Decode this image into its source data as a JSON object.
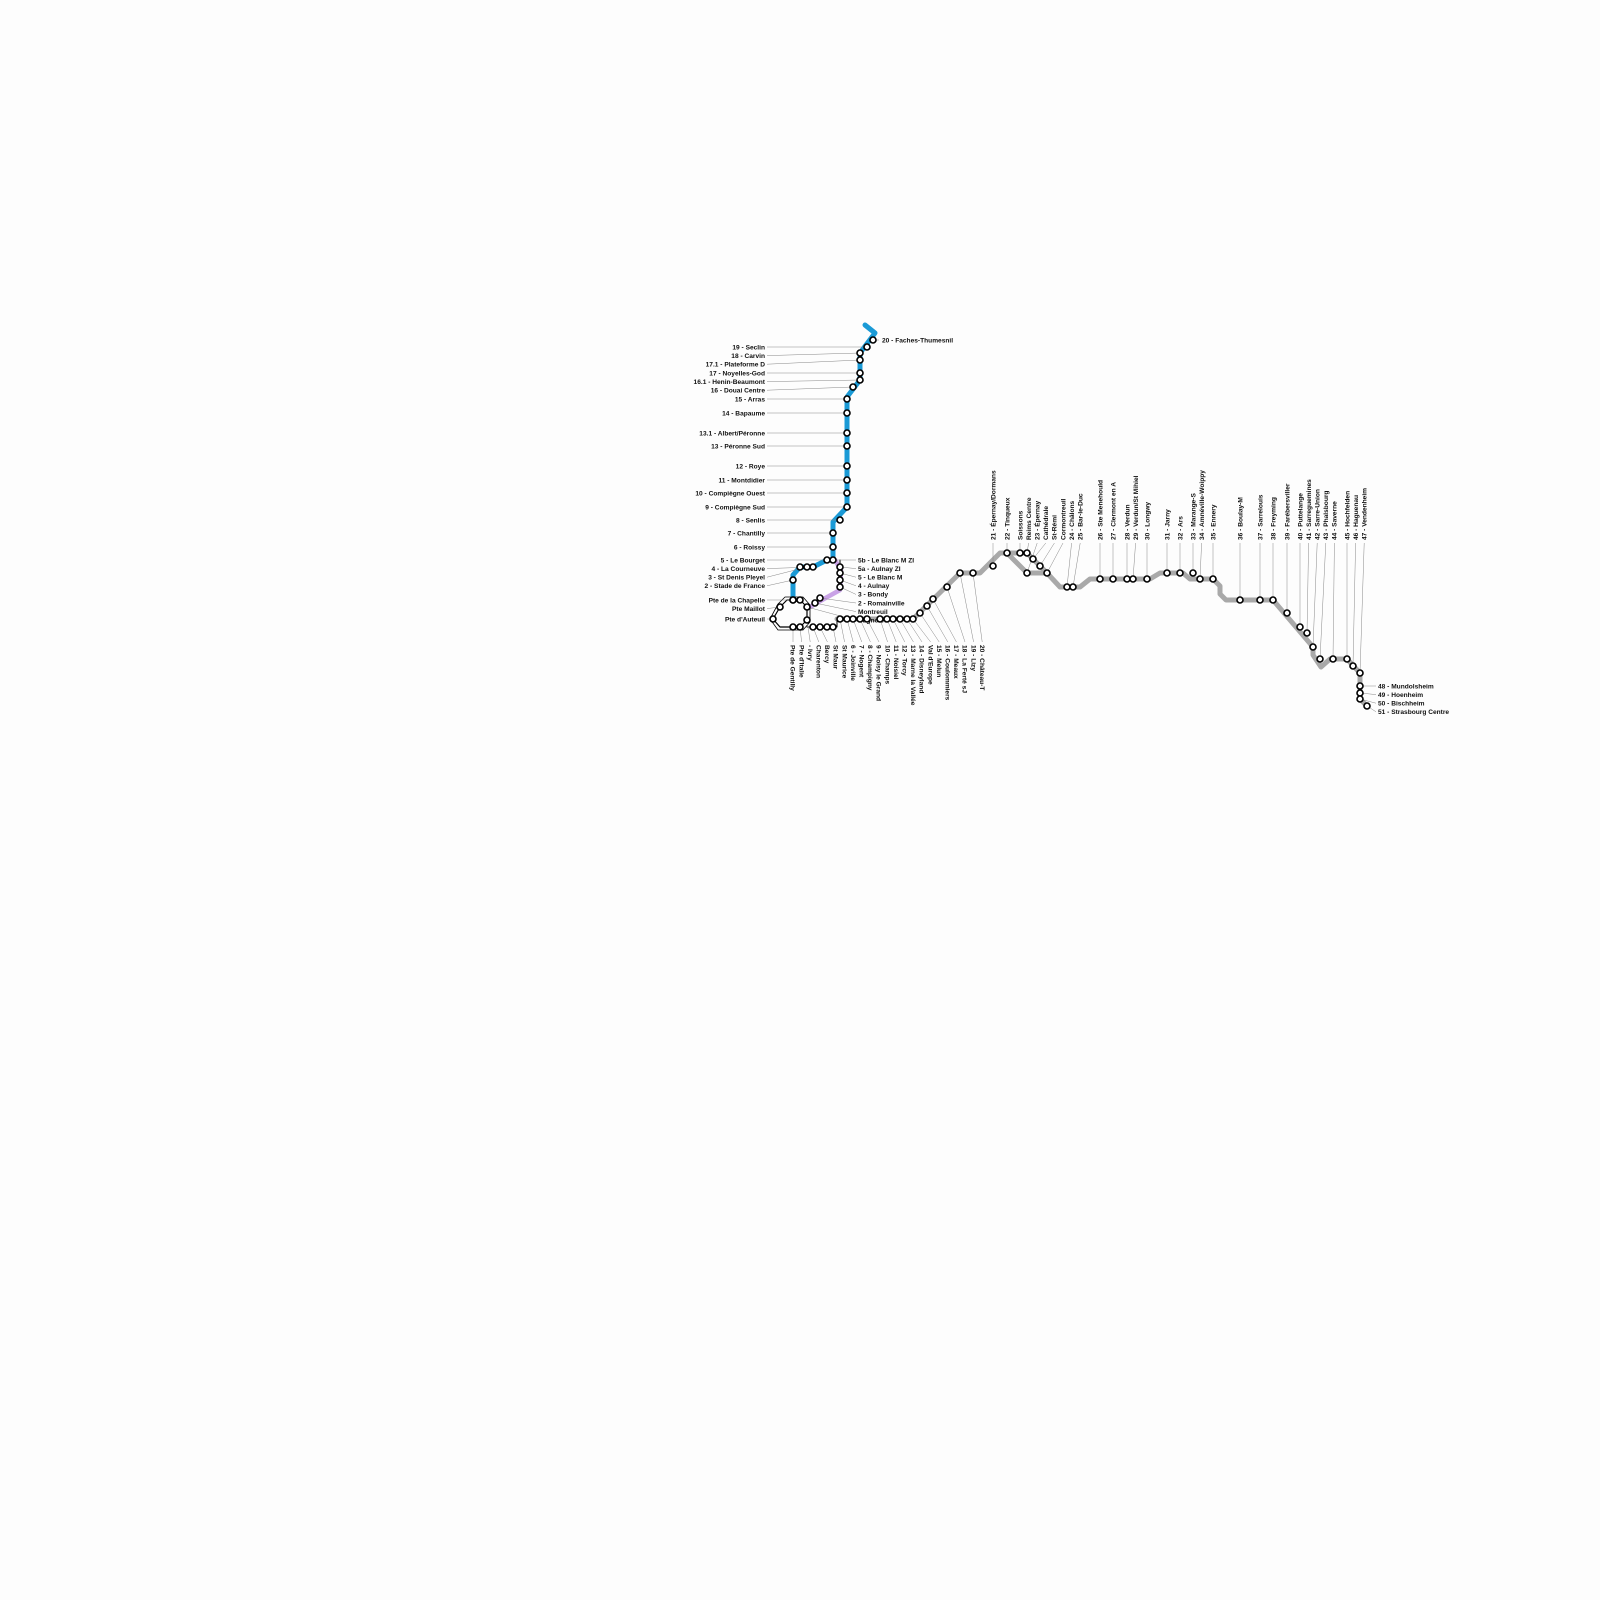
{
  "colors": {
    "blue_line": "#1a9ad6",
    "gray_line": "#a9a9a9",
    "purple_line": "#c9a2e6",
    "ring_line": "#000000"
  },
  "blue_line": {
    "stations": [
      "20 - Faches-Thumesnil",
      "19 - Seclin",
      "18 - Carvin",
      "17.1 - Plateforme D",
      "17 - Noyelles-God",
      "16.1 - Henin-Beaumont",
      "16 - Douai Centre",
      "15 - Arras",
      "14 - Bapaume",
      "13.1 - Albert/Péronne",
      "13 - Péronne Sud",
      "12 - Roye",
      "11 - Montdidier",
      "10 - Compiègne Ouest",
      "9 - Compiègne Sud",
      "8 - Senlis",
      "7 - Chantilly",
      "6 - Roissy",
      "5 - Le Bourget",
      "5b - Le Blanc M ZI",
      "4 - La Courneuve",
      "3 - St Denis Pleyel",
      "",
      "2 - Stade de France",
      "Pte de la Chapelle"
    ]
  },
  "purple_line": {
    "stations": [
      "5a - Aulnay ZI",
      "5 - Le Blanc M",
      "4 - Aulnay",
      "3 - Bondy",
      "2 - Romainville",
      "Montreuil"
    ]
  },
  "ring": {
    "stations": [
      "",
      "",
      "Pte Maillot",
      "Pte d'Auteuil",
      "Pte de Gentilly",
      "Pte d'Italie",
      "Bagnolet",
      "- Ivry"
    ]
  },
  "gray_line": {
    "stations": [
      "Charenton",
      "Bercy",
      "",
      "St Maur",
      "St Maurice",
      "6 - Joinville",
      "7 - Nogent",
      "8 - Champigny",
      "9 - Noisy le Grand",
      "10 - Champs",
      "11 - Noisiel",
      "12 - Torcy",
      "13 - Marne la Vallée",
      "14 - Disneyland",
      "Val d'Europe",
      "15 - Melun",
      "16 - Coulommiers",
      "17 - Meaux",
      "18 - La Ferté sJ",
      "19 - Lizy",
      "20 - Château-T",
      "21 - Épernay/Dormans",
      "22 - Tinqueux",
      "Soissons",
      "Reims Centre",
      "Cathédrale",
      "St-Rémi",
      "Cormontreuil",
      "23 - Épernay",
      "24 - Châlons",
      "25 - Bar-le-Duc",
      "26 - Ste Menehould",
      "27 - Clermont en A",
      "28 - Verdun",
      "29 - Verdun/St Mihiel",
      "30 - Longwy",
      "31 - Jarny",
      "32 - Ars",
      "33 - Marange-S",
      "34 - Amnéville-Woippy",
      "35 - Ennery",
      "36 - Boulay-M",
      "37 - Sarrelouis",
      "38 - Freyming",
      "39 - Farébersviller",
      "40 - Puttelange",
      "41 - Sarreguemines",
      "42 - Sarre-Union",
      "43 - Phalsbourg",
      "44 - Saverne",
      "45 - Hochfelden",
      "46 - Haguenau",
      "47 - Vendenheim",
      "48 - Mundolsheim",
      "49 - Hoenheim",
      "50 - Bischheim",
      "51 - Strasbourg Centre"
    ]
  }
}
